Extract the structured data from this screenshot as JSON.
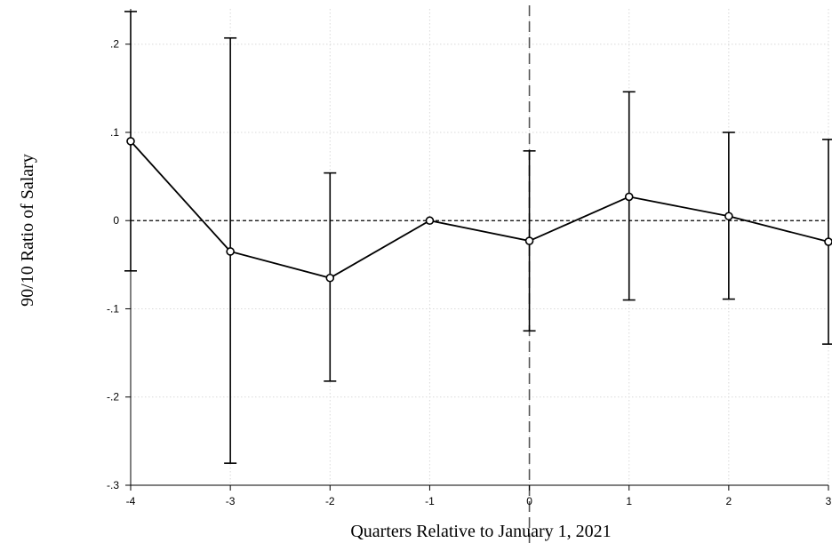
{
  "chart_data": {
    "type": "line",
    "title": "",
    "xlabel": "Quarters Relative to January 1, 2021",
    "ylabel": "90/10 Ratio of Salary",
    "xlim": [
      -4,
      3
    ],
    "ylim": [
      -0.3,
      0.24
    ],
    "x_ticks": [
      -4,
      -3,
      -2,
      -1,
      0,
      1,
      2,
      3
    ],
    "x_tick_labels": [
      "-4",
      "-3",
      "-2",
      "-1",
      "0",
      "1",
      "2",
      "3"
    ],
    "y_ticks": [
      -0.3,
      -0.2,
      -0.1,
      0,
      0.1,
      0.2
    ],
    "y_tick_labels": [
      "-.3",
      "-.2",
      "-.1",
      "0",
      ".1",
      ".2"
    ],
    "grid": true,
    "reference_lines": {
      "y": 0,
      "x": 0
    },
    "series": [
      {
        "x": [
          -4,
          -3,
          -2,
          -1,
          0,
          1,
          2,
          3
        ],
        "y": [
          0.09,
          -0.035,
          -0.065,
          0.0,
          -0.023,
          0.027,
          0.005,
          -0.024
        ],
        "ci_low": [
          -0.057,
          -0.275,
          -0.182,
          0.0,
          -0.125,
          -0.09,
          -0.089,
          -0.14
        ],
        "ci_high": [
          0.237,
          0.207,
          0.054,
          0.0,
          0.079,
          0.146,
          0.1,
          0.092
        ]
      }
    ],
    "colors": {
      "line": "#000000",
      "grid": "#d9d9d9"
    }
  }
}
